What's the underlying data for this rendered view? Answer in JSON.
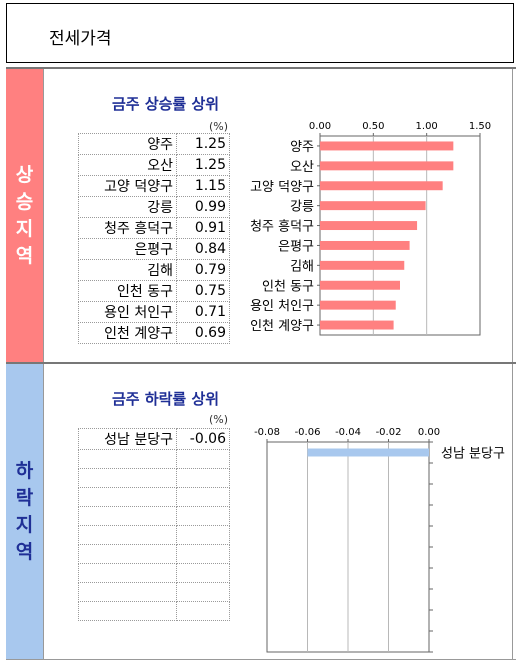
{
  "page_title": "전세가격",
  "sections": [
    {
      "side_label": "상승지역",
      "side_color": "#ff8080",
      "title": "금주 상승률 상위",
      "unit": "(%)",
      "rows": [
        {
          "name": "양주",
          "value": "1.25"
        },
        {
          "name": "오산",
          "value": "1.25"
        },
        {
          "name": "고양 덕양구",
          "value": "1.15"
        },
        {
          "name": "강릉",
          "value": "0.99"
        },
        {
          "name": "청주 흥덕구",
          "value": "0.91"
        },
        {
          "name": "은평구",
          "value": "0.84"
        },
        {
          "name": "김해",
          "value": "0.79"
        },
        {
          "name": "인천 동구",
          "value": "0.75"
        },
        {
          "name": "용인 처인구",
          "value": "0.71"
        },
        {
          "name": "인천 계양구",
          "value": "0.69"
        }
      ]
    },
    {
      "side_label": "하락지역",
      "side_color": "#a8c8ee",
      "title": "금주 하락률 상위",
      "unit": "(%)",
      "rows": [
        {
          "name": "성남 분당구",
          "value": "-0.06"
        },
        {
          "name": "",
          "value": ""
        },
        {
          "name": "",
          "value": ""
        },
        {
          "name": "",
          "value": ""
        },
        {
          "name": "",
          "value": ""
        },
        {
          "name": "",
          "value": ""
        },
        {
          "name": "",
          "value": ""
        },
        {
          "name": "",
          "value": ""
        },
        {
          "name": "",
          "value": ""
        },
        {
          "name": "",
          "value": ""
        }
      ]
    }
  ],
  "chart_data": [
    {
      "type": "bar",
      "orientation": "horizontal",
      "categories": [
        "양주",
        "오산",
        "고양 덕양구",
        "강릉",
        "청주 흥덕구",
        "은평구",
        "김해",
        "인천 동구",
        "용인 처인구",
        "인천 계양구"
      ],
      "values": [
        1.25,
        1.25,
        1.15,
        0.99,
        0.91,
        0.84,
        0.79,
        0.75,
        0.71,
        0.69
      ],
      "xlim": [
        0,
        1.5
      ],
      "ticks": [
        "0.00",
        "0.50",
        "1.00",
        "1.50"
      ],
      "grid": true,
      "axis_position": "top",
      "category_labels": "left",
      "color": "#ff8080"
    },
    {
      "type": "bar",
      "orientation": "horizontal",
      "categories": [
        "성남 분당구"
      ],
      "values": [
        -0.06
      ],
      "xlim": [
        -0.08,
        0
      ],
      "ticks": [
        "-0.08",
        "-0.06",
        "-0.04",
        "-0.02",
        "0.00"
      ],
      "grid": true,
      "axis_position": "top",
      "category_labels": "right",
      "color": "#a8c8ee"
    }
  ]
}
